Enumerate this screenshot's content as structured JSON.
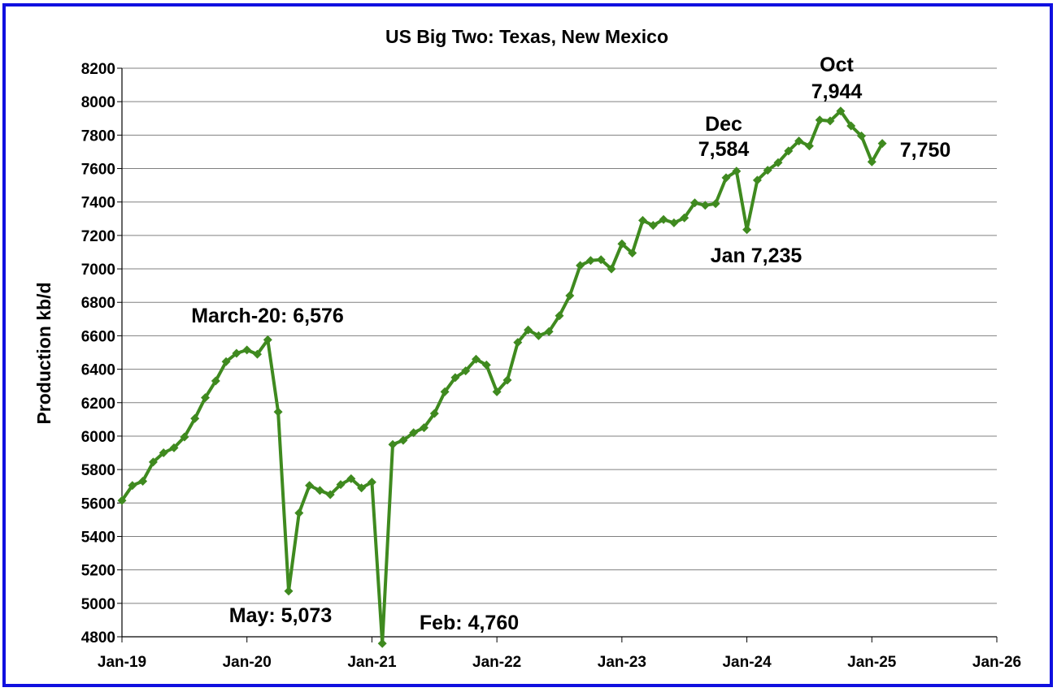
{
  "colors": {
    "border": "#1010e0",
    "series": "#3f8a1f",
    "grid": "#808080",
    "axis": "#000000"
  },
  "chart_data": {
    "type": "line",
    "title": "US Big Two: Texas, New Mexico",
    "xlabel": "",
    "ylabel": "Production kb/d",
    "ylim": [
      4800,
      8200
    ],
    "yticks": [
      4800,
      5000,
      5200,
      5400,
      5600,
      5800,
      6000,
      6200,
      6400,
      6600,
      6800,
      7000,
      7200,
      7400,
      7600,
      7800,
      8000,
      8200
    ],
    "xticks": [
      "Jan-19",
      "Jan-20",
      "Jan-21",
      "Jan-22",
      "Jan-23",
      "Jan-24",
      "Jan-25",
      "Jan-26"
    ],
    "grid": "horizontal",
    "legend": "none",
    "series": [
      {
        "start": "Jan-19",
        "frequency": "monthly",
        "values": [
          5615,
          5705,
          5730,
          5845,
          5900,
          5930,
          5995,
          6105,
          6230,
          6330,
          6445,
          6495,
          6515,
          6490,
          6576,
          6145,
          5073,
          5540,
          5705,
          5675,
          5650,
          5710,
          5745,
          5690,
          5725,
          4760,
          5950,
          5975,
          6020,
          6050,
          6135,
          6265,
          6350,
          6390,
          6460,
          6425,
          6265,
          6335,
          6560,
          6635,
          6600,
          6625,
          6720,
          6840,
          7020,
          7050,
          7055,
          7000,
          7150,
          7095,
          7290,
          7260,
          7295,
          7275,
          7305,
          7395,
          7380,
          7390,
          7545,
          7584,
          7235,
          7530,
          7590,
          7635,
          7705,
          7765,
          7735,
          7890,
          7885,
          7944,
          7855,
          7795,
          7640,
          7750
        ]
      }
    ],
    "annotations": [
      {
        "text": "March-20: 6,576"
      },
      {
        "text": "May: 5,073"
      },
      {
        "text": "Feb: 4,760"
      },
      {
        "text": "Dec"
      },
      {
        "text": "7,584"
      },
      {
        "text": "Jan 7,235"
      },
      {
        "text": "Oct"
      },
      {
        "text": "7,944"
      },
      {
        "text": "7,750"
      }
    ]
  }
}
